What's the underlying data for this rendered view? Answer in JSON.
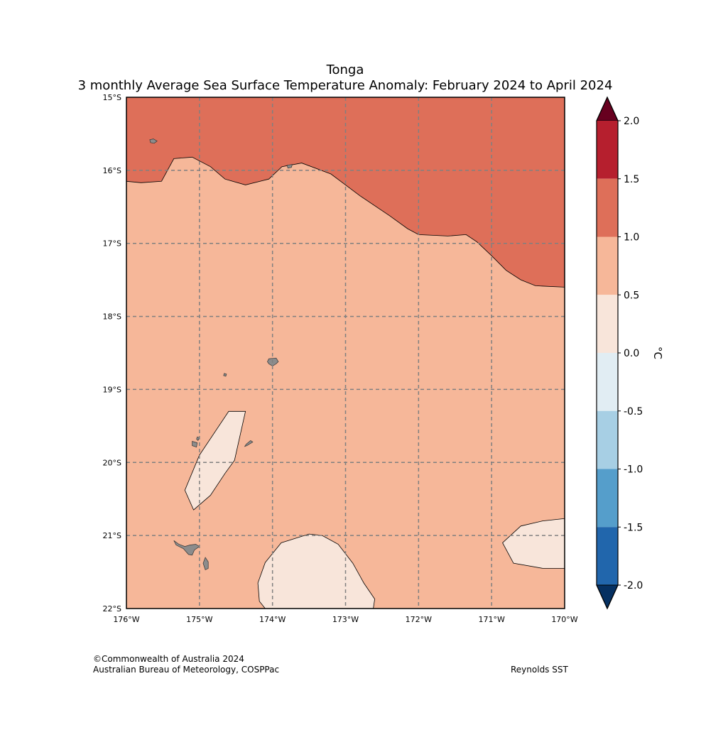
{
  "title": "Tonga",
  "subtitle": "3 monthly Average Sea Surface Temperature Anomaly: February 2024 to April 2024",
  "credits": {
    "copyright": "©Commonwealth of Australia 2024",
    "agency": "Australian Bureau of Meteorology, COSPPac",
    "source": "Reynolds SST"
  },
  "map": {
    "lat_range": [
      -22,
      -15
    ],
    "lon_range": [
      -176,
      -170
    ],
    "lat_labels": [
      "15°S",
      "16°S",
      "17°S",
      "18°S",
      "19°S",
      "20°S",
      "21°S",
      "22°S"
    ],
    "lon_labels": [
      "176°W",
      "175°W",
      "174°W",
      "173°W",
      "172°W",
      "171°W",
      "170°W"
    ],
    "grid": true,
    "background_color": "#f6b799",
    "land_color": "#8c8c8c",
    "regions": [
      {
        "name": "anomaly-1.0-to-1.5",
        "color": "#de6f59",
        "points": [
          [
            -176,
            -15
          ],
          [
            -170,
            -15
          ],
          [
            -170,
            -17.6
          ],
          [
            -170.4,
            -17.58
          ],
          [
            -170.6,
            -17.5
          ],
          [
            -170.8,
            -17.37
          ],
          [
            -171.0,
            -17.17
          ],
          [
            -171.2,
            -16.98
          ],
          [
            -171.35,
            -16.88
          ],
          [
            -171.6,
            -16.9
          ],
          [
            -172.0,
            -16.88
          ],
          [
            -172.15,
            -16.8
          ],
          [
            -172.4,
            -16.62
          ],
          [
            -172.8,
            -16.35
          ],
          [
            -173.2,
            -16.05
          ],
          [
            -173.6,
            -15.9
          ],
          [
            -173.87,
            -15.95
          ],
          [
            -174.05,
            -16.12
          ],
          [
            -174.37,
            -16.2
          ],
          [
            -174.65,
            -16.12
          ],
          [
            -174.85,
            -15.95
          ],
          [
            -175.1,
            -15.82
          ],
          [
            -175.35,
            -15.84
          ],
          [
            -175.52,
            -16.15
          ],
          [
            -175.8,
            -16.17
          ],
          [
            -176,
            -16.15
          ]
        ]
      },
      {
        "name": "anomaly-0.0-to-0.5",
        "color": "#f8e5da",
        "points": [
          [
            -174.37,
            -19.3
          ],
          [
            -174.6,
            -19.3
          ],
          [
            -175.0,
            -19.9
          ],
          [
            -175.2,
            -20.38
          ],
          [
            -175.08,
            -20.65
          ],
          [
            -174.85,
            -20.45
          ],
          [
            -174.65,
            -20.15
          ],
          [
            -174.52,
            -19.97
          ]
        ]
      },
      {
        "name": "anomaly-0.0-to-0.5",
        "color": "#f8e5da",
        "points": [
          [
            -173.5,
            -20.98
          ],
          [
            -173.32,
            -21.0
          ],
          [
            -173.1,
            -21.12
          ],
          [
            -172.9,
            -21.38
          ],
          [
            -172.75,
            -21.65
          ],
          [
            -172.6,
            -21.87
          ],
          [
            -172.62,
            -22
          ],
          [
            -174.1,
            -22
          ],
          [
            -174.18,
            -21.9
          ],
          [
            -174.2,
            -21.65
          ],
          [
            -174.1,
            -21.37
          ],
          [
            -173.88,
            -21.1
          ]
        ]
      },
      {
        "name": "anomaly-0.0-to-0.5",
        "color": "#f8e5da",
        "points": [
          [
            -170.02,
            -20.77
          ],
          [
            -170.3,
            -20.8
          ],
          [
            -170.6,
            -20.87
          ],
          [
            -170.85,
            -21.1
          ],
          [
            -170.7,
            -21.38
          ],
          [
            -170.3,
            -21.45
          ],
          [
            -170.0,
            -21.45
          ],
          [
            -170,
            -20.77
          ]
        ]
      }
    ],
    "islands": [
      {
        "name": "niuafoou",
        "points": [
          [
            -175.68,
            -15.58
          ],
          [
            -175.63,
            -15.57
          ],
          [
            -175.58,
            -15.6
          ],
          [
            -175.62,
            -15.63
          ],
          [
            -175.67,
            -15.62
          ]
        ]
      },
      {
        "name": "niuatoputapu",
        "points": [
          [
            -173.8,
            -15.93
          ],
          [
            -173.73,
            -15.92
          ],
          [
            -173.74,
            -15.96
          ],
          [
            -173.79,
            -15.97
          ]
        ]
      },
      {
        "name": "vavau",
        "points": [
          [
            -174.05,
            -18.58
          ],
          [
            -173.95,
            -18.57
          ],
          [
            -173.92,
            -18.62
          ],
          [
            -173.95,
            -18.65
          ],
          [
            -174.0,
            -18.68
          ],
          [
            -174.05,
            -18.65
          ],
          [
            -174.07,
            -18.62
          ]
        ]
      },
      {
        "name": "late",
        "points": [
          [
            -174.66,
            -18.78
          ],
          [
            -174.63,
            -18.79
          ],
          [
            -174.64,
            -18.82
          ],
          [
            -174.67,
            -18.81
          ]
        ]
      },
      {
        "name": "kao",
        "points": [
          [
            -175.03,
            -19.65
          ],
          [
            -175.0,
            -19.66
          ],
          [
            -175.02,
            -19.7
          ],
          [
            -175.04,
            -19.68
          ]
        ]
      },
      {
        "name": "tofua",
        "points": [
          [
            -175.1,
            -19.71
          ],
          [
            -175.03,
            -19.73
          ],
          [
            -175.04,
            -19.79
          ],
          [
            -175.1,
            -19.77
          ]
        ]
      },
      {
        "name": "haapai",
        "points": [
          [
            -174.3,
            -19.7
          ],
          [
            -174.27,
            -19.72
          ],
          [
            -174.35,
            -19.77
          ],
          [
            -174.38,
            -19.78
          ],
          [
            -174.36,
            -19.75
          ]
        ]
      },
      {
        "name": "tongatapu",
        "points": [
          [
            -175.35,
            -21.07
          ],
          [
            -175.32,
            -21.13
          ],
          [
            -175.22,
            -21.18
          ],
          [
            -175.15,
            -21.26
          ],
          [
            -175.1,
            -21.27
          ],
          [
            -175.07,
            -21.2
          ],
          [
            -175.0,
            -21.15
          ],
          [
            -175.05,
            -21.12
          ],
          [
            -175.13,
            -21.13
          ],
          [
            -175.2,
            -21.15
          ],
          [
            -175.28,
            -21.12
          ]
        ]
      },
      {
        "name": "eua",
        "points": [
          [
            -174.92,
            -21.3
          ],
          [
            -174.95,
            -21.38
          ],
          [
            -174.92,
            -21.47
          ],
          [
            -174.88,
            -21.45
          ],
          [
            -174.88,
            -21.36
          ]
        ]
      }
    ]
  },
  "colorbar": {
    "unit": "°C",
    "ticks": [
      "2.0",
      "1.5",
      "1.0",
      "0.5",
      "0.0",
      "-0.5",
      "-1.0",
      "-1.5",
      "-2.0"
    ],
    "bins": [
      {
        "min": 1.5,
        "max": 2.0,
        "color": "#b61f2e"
      },
      {
        "min": 1.0,
        "max": 1.5,
        "color": "#de6f59"
      },
      {
        "min": 0.5,
        "max": 1.0,
        "color": "#f6b799"
      },
      {
        "min": 0.0,
        "max": 0.5,
        "color": "#f8e5da"
      },
      {
        "min": -0.5,
        "max": 0.0,
        "color": "#e1edf3"
      },
      {
        "min": -1.0,
        "max": -0.5,
        "color": "#a7cfe4"
      },
      {
        "min": -1.5,
        "max": -1.0,
        "color": "#559ecb"
      },
      {
        "min": -2.0,
        "max": -1.5,
        "color": "#2166ac"
      }
    ],
    "over_color": "#67001f",
    "under_color": "#053061"
  }
}
